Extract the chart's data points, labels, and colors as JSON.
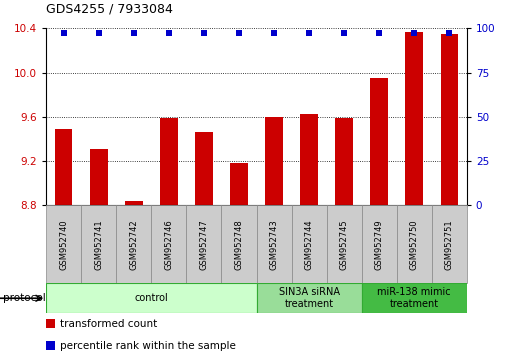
{
  "title": "GDS4255 / 7933084",
  "samples": [
    "GSM952740",
    "GSM952741",
    "GSM952742",
    "GSM952746",
    "GSM952747",
    "GSM952748",
    "GSM952743",
    "GSM952744",
    "GSM952745",
    "GSM952749",
    "GSM952750",
    "GSM952751"
  ],
  "bar_values": [
    9.49,
    9.31,
    8.84,
    9.59,
    9.46,
    9.18,
    9.6,
    9.63,
    9.59,
    9.95,
    10.37,
    10.35
  ],
  "percentile_values": [
    100,
    100,
    100,
    100,
    100,
    100,
    100,
    100,
    100,
    100,
    100,
    100
  ],
  "bar_color": "#cc0000",
  "percentile_color": "#0000cc",
  "ylim_left": [
    8.8,
    10.4
  ],
  "ylim_right": [
    0,
    100
  ],
  "yticks_left": [
    8.8,
    9.2,
    9.6,
    10.0,
    10.4
  ],
  "yticks_right": [
    0,
    25,
    50,
    75,
    100
  ],
  "groups": [
    {
      "label": "control",
      "start": 0,
      "end": 6,
      "color": "#ccffcc",
      "edge_color": "#33aa33"
    },
    {
      "label": "SIN3A siRNA\ntreatment",
      "start": 6,
      "end": 9,
      "color": "#99dd99",
      "edge_color": "#33aa33"
    },
    {
      "label": "miR-138 mimic\ntreatment",
      "start": 9,
      "end": 12,
      "color": "#44bb44",
      "edge_color": "#33aa33"
    }
  ],
  "protocol_label": "protocol",
  "legend_items": [
    {
      "label": "transformed count",
      "color": "#cc0000"
    },
    {
      "label": "percentile rank within the sample",
      "color": "#0000cc"
    }
  ],
  "grid_color": "#000000",
  "tick_label_color_left": "#cc0000",
  "tick_label_color_right": "#0000cc",
  "bar_width": 0.5,
  "percentile_marker_size": 5,
  "sample_box_color": "#cccccc",
  "sample_box_edge": "#888888",
  "figsize": [
    5.13,
    3.54
  ],
  "dpi": 100
}
